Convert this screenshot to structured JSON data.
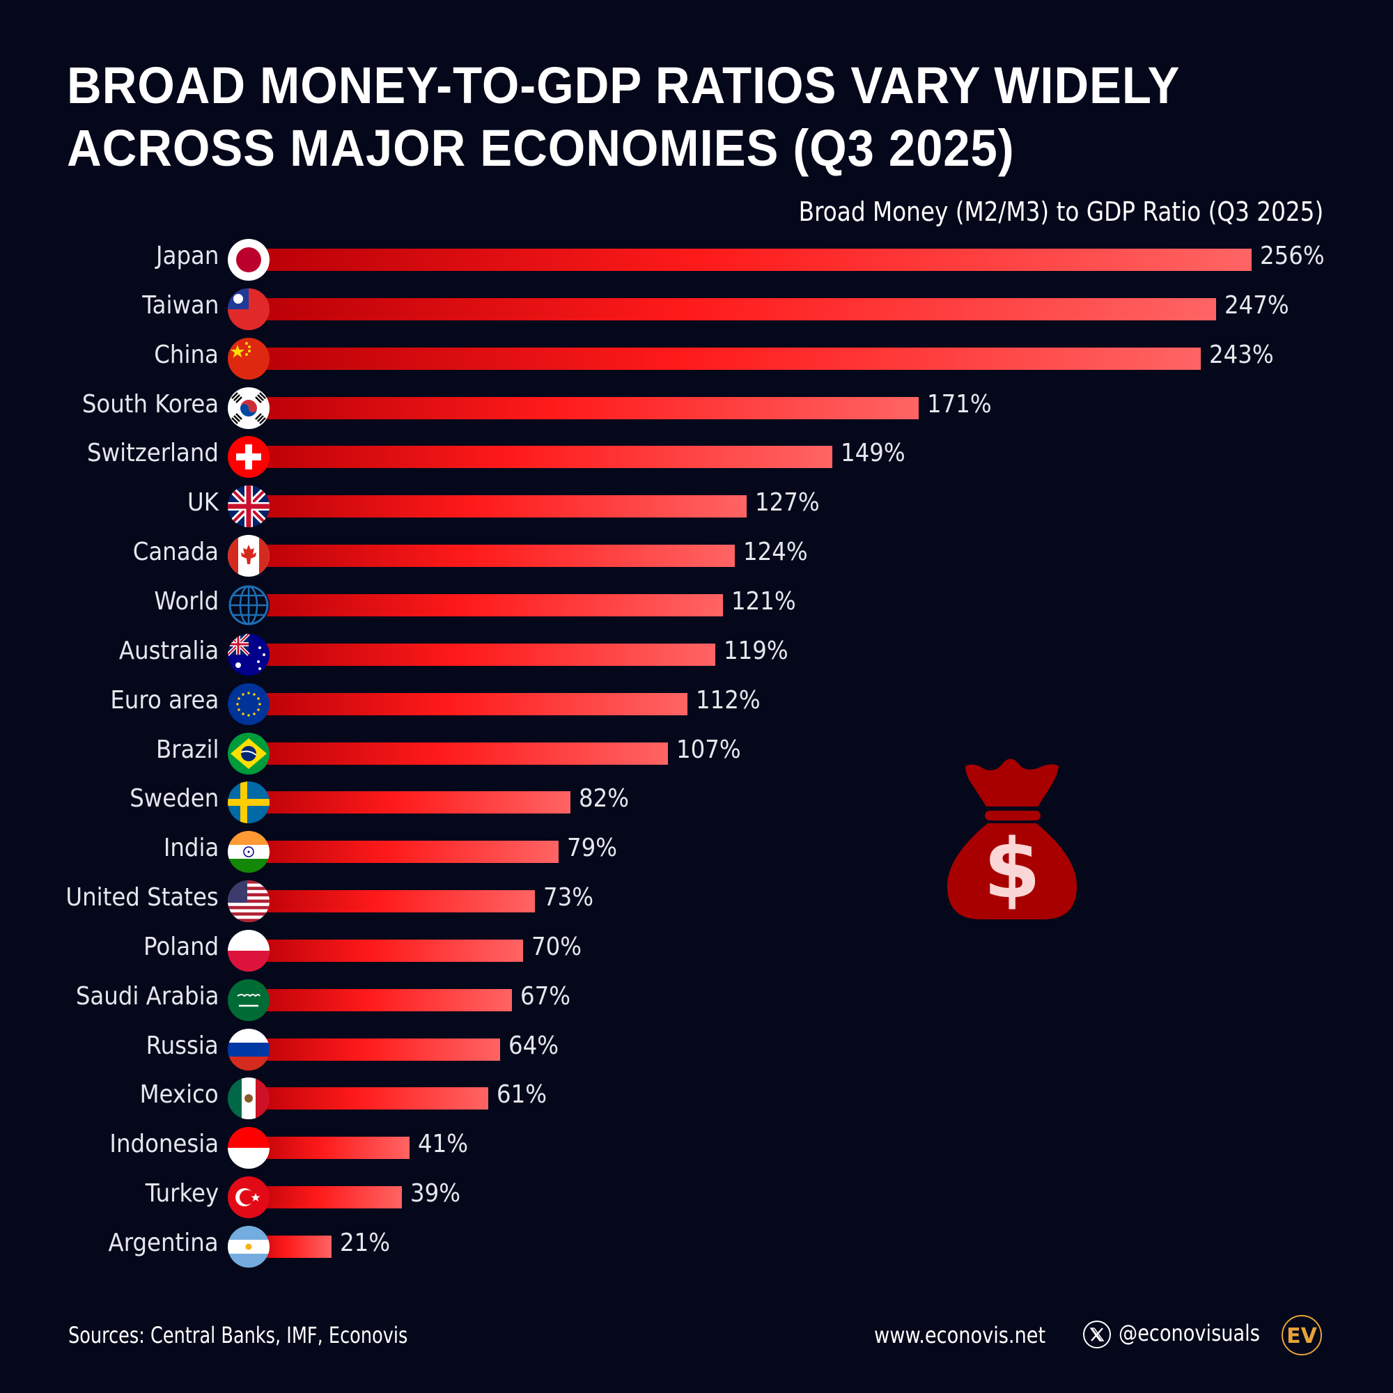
{
  "title": {
    "line1": "BROAD MONEY-TO-GDP RATIOS VARY WIDELY",
    "line2": "ACROSS MAJOR ECONOMIES (Q3 2025)"
  },
  "subtitle": "Broad Money (M2/M3) to GDP Ratio (Q3 2025)",
  "rows": [
    {
      "label": "Japan",
      "value": 256,
      "display": "256%",
      "flag": "japan-flag-icon"
    },
    {
      "label": "Taiwan",
      "value": 247,
      "display": "247%",
      "flag": "taiwan-flag-icon"
    },
    {
      "label": "China",
      "value": 243,
      "display": "243%",
      "flag": "china-flag-icon"
    },
    {
      "label": "South Korea",
      "value": 171,
      "display": "171%",
      "flag": "south-korea-flag-icon"
    },
    {
      "label": "Switzerland",
      "value": 149,
      "display": "149%",
      "flag": "switzerland-flag-icon"
    },
    {
      "label": "UK",
      "value": 127,
      "display": "127%",
      "flag": "uk-flag-icon"
    },
    {
      "label": "Canada",
      "value": 124,
      "display": "124%",
      "flag": "canada-flag-icon"
    },
    {
      "label": "World",
      "value": 121,
      "display": "121%",
      "flag": "globe-icon"
    },
    {
      "label": "Australia",
      "value": 119,
      "display": "119%",
      "flag": "australia-flag-icon"
    },
    {
      "label": "Euro area",
      "value": 112,
      "display": "112%",
      "flag": "eu-flag-icon"
    },
    {
      "label": "Brazil",
      "value": 107,
      "display": "107%",
      "flag": "brazil-flag-icon"
    },
    {
      "label": "Sweden",
      "value": 82,
      "display": "82%",
      "flag": "sweden-flag-icon"
    },
    {
      "label": "India",
      "value": 79,
      "display": "79%",
      "flag": "india-flag-icon"
    },
    {
      "label": "United States",
      "value": 73,
      "display": "73%",
      "flag": "us-flag-icon"
    },
    {
      "label": "Poland",
      "value": 70,
      "display": "70%",
      "flag": "poland-flag-icon"
    },
    {
      "label": "Saudi Arabia",
      "value": 67,
      "display": "67%",
      "flag": "saudi-arabia-flag-icon"
    },
    {
      "label": "Russia",
      "value": 64,
      "display": "64%",
      "flag": "russia-flag-icon"
    },
    {
      "label": "Mexico",
      "value": 61,
      "display": "61%",
      "flag": "mexico-flag-icon"
    },
    {
      "label": "Indonesia",
      "value": 41,
      "display": "41%",
      "flag": "indonesia-flag-icon"
    },
    {
      "label": "Turkey",
      "value": 39,
      "display": "39%",
      "flag": "turkey-flag-icon"
    },
    {
      "label": "Argentina",
      "value": 21,
      "display": "21%",
      "flag": "argentina-flag-icon"
    }
  ],
  "colors": {
    "background": "#04081a",
    "bar_start": "#b80006",
    "bar_mid": "#ff1a1a",
    "bar_end": "#ff6464",
    "moneybag": "#a80000",
    "logo_gold": "#e8a33a"
  },
  "footer": {
    "sources": "Sources: Central Banks, IMF, Econovis",
    "website": "www.econovis.net",
    "handle": "@econovisuals",
    "logo_text": "EV"
  },
  "chart_data": {
    "type": "bar",
    "orientation": "horizontal",
    "title": "BROAD MONEY-TO-GDP RATIOS VARY WIDELY ACROSS MAJOR ECONOMIES (Q3 2025)",
    "subtitle": "Broad Money (M2/M3) to GDP Ratio (Q3 2025)",
    "categories": [
      "Japan",
      "Taiwan",
      "China",
      "South Korea",
      "Switzerland",
      "UK",
      "Canada",
      "World",
      "Australia",
      "Euro area",
      "Brazil",
      "Sweden",
      "India",
      "United States",
      "Poland",
      "Saudi Arabia",
      "Russia",
      "Mexico",
      "Indonesia",
      "Turkey",
      "Argentina"
    ],
    "values": [
      256,
      247,
      243,
      171,
      149,
      127,
      124,
      121,
      119,
      112,
      107,
      82,
      79,
      73,
      70,
      67,
      64,
      61,
      41,
      39,
      21
    ],
    "unit": "%",
    "xlabel": "",
    "ylabel": "",
    "xlim": [
      0,
      256
    ],
    "grid": false,
    "legend": null,
    "data_labels": true,
    "source": "Sources: Central Banks, IMF, Econovis"
  }
}
